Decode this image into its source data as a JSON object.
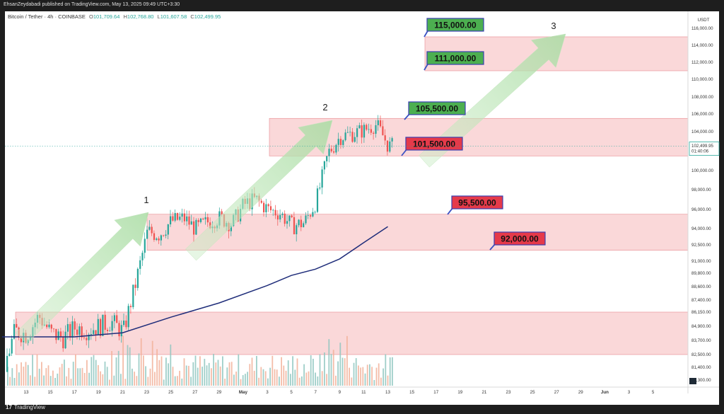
{
  "header": {
    "publisher": "EhsanZeydabadi published on TradingView.com, May 13, 2025 09:49 UTC+3:30"
  },
  "symbol": {
    "name": "Bitcoin / Tether · 4h · COINBASE",
    "open_label": "O",
    "open": "101,709.64",
    "high_label": "H",
    "high": "102,768.80",
    "low_label": "L",
    "low": "101,607.58",
    "close_label": "C",
    "close": "102,499.95"
  },
  "footer": {
    "brand": "TradingView",
    "logo": "17"
  },
  "chart_data": {
    "type": "candlestick",
    "currency": "USDT",
    "last_price": "102,499.95",
    "countdown": "01:40:06",
    "y_ticks": [
      "116,000.00",
      "114,000.00",
      "112,000.00",
      "110,000.00",
      "108,000.00",
      "106,000.00",
      "104,000.00",
      "100,000.00",
      "98,000.00",
      "96,000.00",
      "94,000.00",
      "92,500.00",
      "91,000.00",
      "89,800.00",
      "88,600.00",
      "87,400.00",
      "86,150.00",
      "84,900.00",
      "83,700.00",
      "82,500.00",
      "81,400.00",
      "80,300.00"
    ],
    "y_tick_values": [
      116000,
      114000,
      112000,
      110000,
      108000,
      106000,
      104000,
      100000,
      98000,
      96000,
      94000,
      92500,
      91000,
      89800,
      88600,
      87400,
      86150,
      84900,
      83700,
      82500,
      81400,
      80300
    ],
    "x_ticks": [
      "13",
      "15",
      "17",
      "19",
      "21",
      "23",
      "25",
      "27",
      "29",
      "May",
      "3",
      "5",
      "7",
      "9",
      "11",
      "13",
      "15",
      "17",
      "19",
      "21",
      "23",
      "25",
      "27",
      "29",
      "Jun",
      "3",
      "5"
    ],
    "zones": [
      {
        "from": 111000,
        "to": 115000
      },
      {
        "from": 101500,
        "to": 105500
      },
      {
        "from": 92000,
        "to": 95500
      },
      {
        "from": 82500,
        "to": 86150
      }
    ],
    "levels": [
      {
        "text": "115,000.00",
        "value": 115000,
        "type": "resistance"
      },
      {
        "text": "111,000.00",
        "value": 111000,
        "type": "resistance"
      },
      {
        "text": "105,500.00",
        "value": 105500,
        "type": "resistance"
      },
      {
        "text": "101,500.00",
        "value": 101500,
        "type": "support"
      },
      {
        "text": "95,500.00",
        "value": 95500,
        "type": "support"
      },
      {
        "text": "92,000.00",
        "value": 92000,
        "type": "support"
      }
    ],
    "waves": [
      "1",
      "2",
      "3"
    ],
    "price_path": [
      [
        "Apr 11",
        81000
      ],
      [
        "Apr 12",
        84500
      ],
      [
        "Apr 13",
        84200
      ],
      [
        "Apr 14",
        85800
      ],
      [
        "Apr 15",
        84300
      ],
      [
        "Apr 16",
        83900
      ],
      [
        "Apr 17",
        84800
      ],
      [
        "Apr 18",
        84600
      ],
      [
        "Apr 19",
        84900
      ],
      [
        "Apr 20",
        85300
      ],
      [
        "Apr 21",
        84400
      ],
      [
        "Apr 22",
        88800
      ],
      [
        "Apr 23",
        93700
      ],
      [
        "Apr 24",
        93500
      ],
      [
        "Apr 25",
        94800
      ],
      [
        "Apr 26",
        95100
      ],
      [
        "Apr 27",
        94000
      ],
      [
        "Apr 28",
        94700
      ],
      [
        "Apr 29",
        95100
      ],
      [
        "Apr 30",
        94500
      ],
      [
        "May 1",
        96500
      ],
      [
        "May 2",
        97000
      ],
      [
        "May 3",
        96000
      ],
      [
        "May 4",
        95600
      ],
      [
        "May 5",
        94300
      ],
      [
        "May 6",
        94600
      ],
      [
        "May 7",
        96800
      ],
      [
        "May 8",
        101800
      ],
      [
        "May 9",
        103500
      ],
      [
        "May 10",
        103800
      ],
      [
        "May 11",
        104200
      ],
      [
        "May 12",
        104800
      ],
      [
        "May 13",
        102500
      ]
    ],
    "moving_average": [
      [
        "Apr 11",
        84000
      ],
      [
        "Apr 17",
        84000
      ],
      [
        "Apr 21",
        84350
      ],
      [
        "Apr 25",
        85700
      ],
      [
        "Apr 29",
        87100
      ],
      [
        "May 3",
        88700
      ],
      [
        "May 5",
        89600
      ],
      [
        "May 7",
        90200
      ],
      [
        "May 9",
        91200
      ],
      [
        "May 11",
        92700
      ],
      [
        "May 13",
        94200
      ]
    ]
  }
}
